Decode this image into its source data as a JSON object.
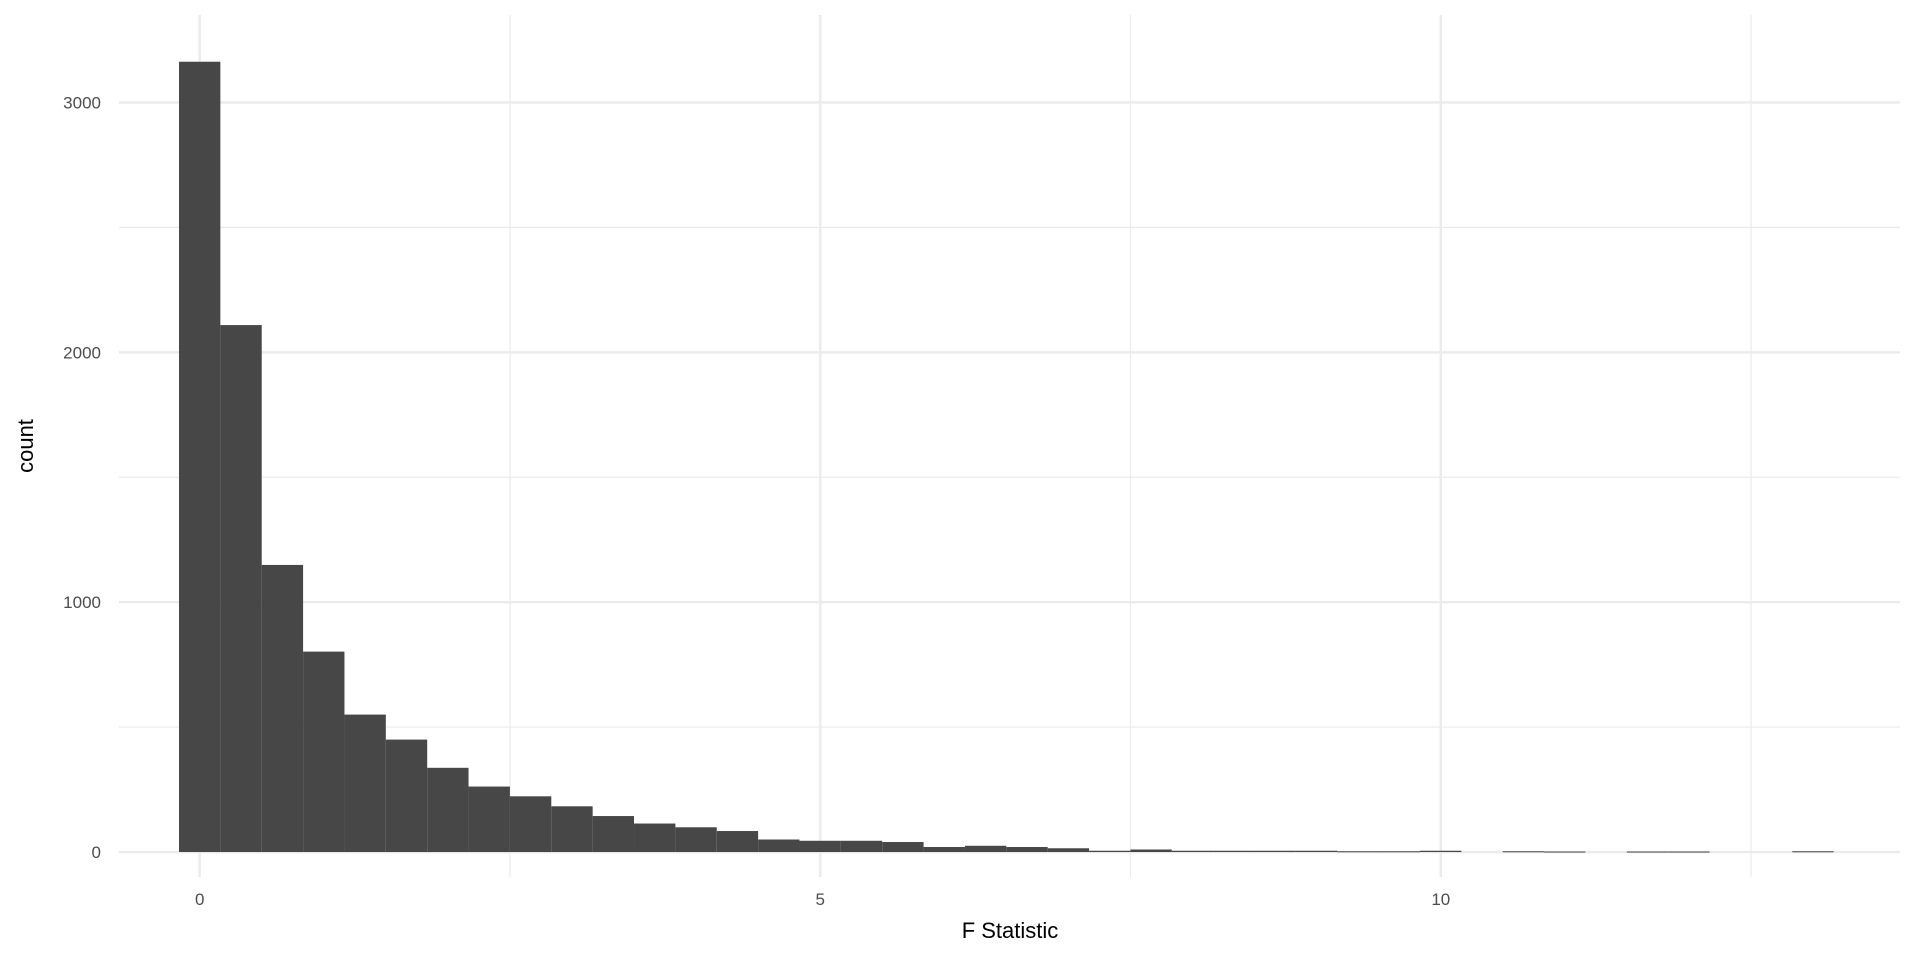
{
  "chart_data": {
    "type": "bar",
    "subtype": "histogram",
    "title": "",
    "xlabel": "F Statistic",
    "ylabel": "count",
    "binwidth": 0.3333,
    "bin_centers_start": 0,
    "values": [
      3163,
      2109,
      1149,
      802,
      550,
      450,
      337,
      262,
      223,
      183,
      144,
      114,
      99,
      84,
      50,
      45,
      45,
      40,
      20,
      25,
      20,
      15,
      5,
      10,
      5,
      5,
      5,
      5,
      3,
      3,
      5,
      0,
      3,
      2,
      0,
      2,
      2,
      0,
      0,
      3
    ],
    "xlim": [
      -0.65,
      13.7
    ],
    "ylim": [
      -100,
      3350
    ],
    "x_ticks": [
      0,
      5,
      10
    ],
    "x_tick_labels": [
      "0",
      "5",
      "10"
    ],
    "y_ticks": [
      0,
      1000,
      2000,
      3000
    ],
    "y_tick_labels": [
      "0",
      "1000",
      "2000",
      "3000"
    ],
    "x_minor_grid": [
      2.5,
      7.5,
      12.5
    ],
    "y_minor_grid": [
      500,
      1500,
      2500
    ],
    "grid": true,
    "legend": "none",
    "colors": {
      "bar": "#474747",
      "grid": "#ebebeb",
      "background": "#ffffff"
    }
  }
}
